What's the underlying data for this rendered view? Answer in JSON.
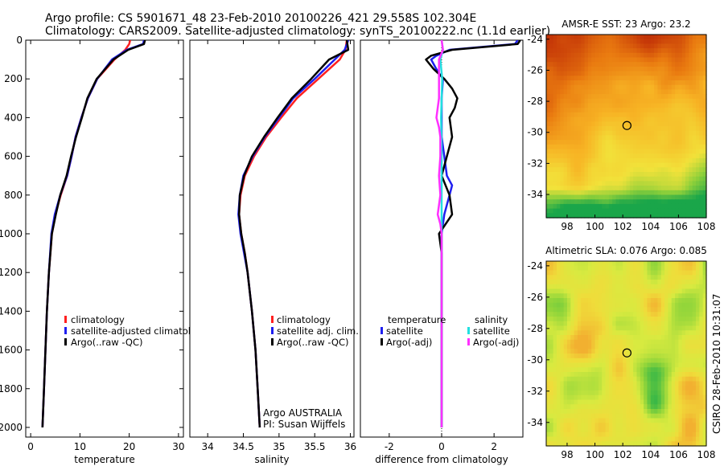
{
  "header": {
    "line1": "Argo profile: CS 5901671_48 23-Feb-2010 20100226_421 29.558S 102.304E",
    "line2": "Climatology: CARS2009. Satellite-adjusted climatology: synTS_20100222.nc (1.1d earlier)"
  },
  "footer": {
    "org_line1": "Argo AUSTRALIA",
    "org_line2": "PI: Susan Wijffels",
    "side_stamp": "CSIRO 28-Feb-2010 10:31:07"
  },
  "colors": {
    "climatology": "#ff2020",
    "satellite": "#1f1ff0",
    "argo": "#000000",
    "sal_satellite": "#22e0e0",
    "sal_argo": "#ff30ff"
  },
  "chart_data": [
    {
      "id": "temperature",
      "type": "line",
      "xlabel": "temperature",
      "ylabel": "",
      "xlim": [
        -1,
        31
      ],
      "ylim": [
        2050,
        0
      ],
      "xticks": [
        0,
        10,
        20,
        30
      ],
      "yticks": [
        0,
        200,
        400,
        600,
        800,
        1000,
        1200,
        1400,
        1600,
        1800,
        2000
      ],
      "legend": [
        "climatology",
        "satellite-adjusted climatolo",
        "Argo(..raw -QC)"
      ],
      "legend_position": "lower-right",
      "series": [
        {
          "name": "climatology",
          "color": "#ff2020",
          "depth": [
            0,
            20,
            50,
            100,
            200,
            300,
            400,
            500,
            600,
            700,
            800,
            900,
            1000,
            1200,
            1400,
            1600,
            1800,
            2000
          ],
          "values": [
            20.2,
            20.0,
            19.2,
            17.0,
            13.5,
            11.6,
            10.3,
            9.1,
            8.3,
            7.4,
            6.1,
            5.0,
            4.3,
            3.7,
            3.3,
            3.0,
            2.7,
            2.4
          ]
        },
        {
          "name": "satellite-adjusted climatology",
          "color": "#1f1ff0",
          "depth": [
            0,
            20,
            50,
            100,
            200,
            300,
            400,
            500,
            600,
            700,
            800,
            900,
            1000,
            1200,
            1400,
            1600,
            1800,
            2000
          ],
          "values": [
            23.0,
            22.8,
            19.5,
            16.5,
            13.5,
            11.6,
            10.3,
            9.1,
            8.3,
            7.4,
            6.0,
            4.9,
            4.2,
            3.7,
            3.3,
            3.0,
            2.7,
            2.4
          ]
        },
        {
          "name": "Argo(..raw -QC)",
          "color": "#000000",
          "depth": [
            0,
            20,
            50,
            100,
            200,
            300,
            400,
            500,
            600,
            700,
            800,
            900,
            1000,
            1200,
            1400,
            1600,
            1800,
            2000
          ],
          "values": [
            23.2,
            23.0,
            19.8,
            16.8,
            13.4,
            11.5,
            10.4,
            9.2,
            8.2,
            7.3,
            6.0,
            5.1,
            4.3,
            3.7,
            3.3,
            3.0,
            2.7,
            2.4
          ]
        }
      ]
    },
    {
      "id": "salinity",
      "type": "line",
      "xlabel": "salinity",
      "ylabel": "",
      "xlim": [
        33.75,
        36.05
      ],
      "ylim": [
        2050,
        0
      ],
      "xticks": [
        34,
        34.5,
        35,
        35.5,
        36
      ],
      "xticklabels": [
        "34",
        "34.5",
        "35",
        "35.5",
        "36"
      ],
      "legend": [
        "climatology",
        "satellite adj. clim.",
        "Argo(..raw -QC)"
      ],
      "legend_position": "lower-right",
      "series": [
        {
          "name": "climatology",
          "color": "#ff2020",
          "depth": [
            0,
            50,
            100,
            200,
            300,
            400,
            500,
            600,
            700,
            800,
            900,
            1000,
            1100,
            1200,
            1400,
            1600,
            1800,
            2000
          ],
          "values": [
            35.95,
            35.93,
            35.85,
            35.55,
            35.25,
            35.03,
            34.82,
            34.65,
            34.52,
            34.46,
            34.44,
            34.47,
            34.52,
            34.56,
            34.62,
            34.67,
            34.7,
            34.73
          ]
        },
        {
          "name": "satellite adj. clim.",
          "color": "#1f1ff0",
          "depth": [
            0,
            50,
            100,
            200,
            300,
            400,
            500,
            600,
            700,
            800,
            900,
            1000,
            1100,
            1200,
            1400,
            1600,
            1800,
            2000
          ],
          "values": [
            35.97,
            35.92,
            35.78,
            35.5,
            35.2,
            35.0,
            34.8,
            34.63,
            34.5,
            34.45,
            34.43,
            34.46,
            34.51,
            34.56,
            34.62,
            34.67,
            34.7,
            34.73
          ]
        },
        {
          "name": "Argo(..raw -QC)",
          "color": "#000000",
          "depth": [
            0,
            50,
            100,
            200,
            300,
            400,
            500,
            600,
            700,
            800,
            900,
            1000,
            1100,
            1200,
            1400,
            1600,
            1800,
            2000
          ],
          "values": [
            35.95,
            35.97,
            35.7,
            35.45,
            35.18,
            34.98,
            34.79,
            34.62,
            34.51,
            34.45,
            34.44,
            34.47,
            34.52,
            34.56,
            34.62,
            34.67,
            34.7,
            34.73
          ]
        }
      ]
    },
    {
      "id": "difference",
      "type": "line",
      "xlabel": "difference from climatology",
      "ylabel": "",
      "xlim": [
        -3.1,
        3.1
      ],
      "ylim": [
        2050,
        0
      ],
      "xticks": [
        -2,
        0,
        2
      ],
      "legend_groups": [
        {
          "title": "temperature",
          "entries": [
            "satellite",
            "Argo(-adj)"
          ]
        },
        {
          "title": "salinity",
          "entries": [
            "satellite",
            "Argo(-adj)"
          ]
        }
      ],
      "legend_position": "lower-center",
      "series": [
        {
          "name": "temperature satellite",
          "color": "#1f1ff0",
          "depth": [
            0,
            20,
            50,
            80,
            100,
            150,
            200,
            300,
            400,
            500,
            600,
            700,
            750,
            800,
            900,
            1000,
            1100,
            1200,
            1400,
            1600,
            1800,
            2000
          ],
          "values": [
            2.9,
            2.8,
            0.3,
            -0.2,
            -0.4,
            -0.2,
            0.05,
            0.0,
            0.0,
            0.0,
            0.1,
            0.2,
            0.4,
            0.3,
            0.1,
            0.0,
            0.0,
            0.0,
            0.0,
            0.0,
            0.0,
            0.0
          ]
        },
        {
          "name": "temperature Argo(-adj)",
          "color": "#000000",
          "depth": [
            0,
            20,
            50,
            80,
            100,
            150,
            200,
            250,
            300,
            350,
            400,
            500,
            600,
            700,
            800,
            900,
            1000,
            1100,
            1200,
            1400,
            1600,
            1800,
            2000
          ],
          "values": [
            3.0,
            2.9,
            0.4,
            -0.4,
            -0.6,
            -0.3,
            0.1,
            0.4,
            0.6,
            0.5,
            0.3,
            0.4,
            0.2,
            0.0,
            0.3,
            0.4,
            -0.1,
            0.0,
            0.0,
            0.0,
            0.0,
            0.0,
            0.0
          ]
        },
        {
          "name": "salinity satellite",
          "color": "#22e0e0",
          "depth": [
            0,
            50,
            100,
            200,
            300,
            400,
            500,
            600,
            700,
            800,
            900,
            1000,
            1200,
            1400,
            1600,
            1800,
            2000
          ],
          "values": [
            0.0,
            0.05,
            -0.05,
            0.02,
            0.0,
            -0.02,
            -0.01,
            0.0,
            0.0,
            0.0,
            0.0,
            0.0,
            0.0,
            0.0,
            0.0,
            0.0,
            0.0
          ]
        },
        {
          "name": "salinity Argo(-adj)",
          "color": "#ff30ff",
          "depth": [
            0,
            50,
            100,
            200,
            300,
            400,
            450,
            500,
            600,
            700,
            800,
            900,
            950,
            1000,
            1200,
            1400,
            1600,
            1800,
            2000
          ],
          "values": [
            0.0,
            0.05,
            -0.1,
            -0.1,
            -0.1,
            -0.2,
            -0.1,
            -0.05,
            -0.05,
            -0.1,
            -0.05,
            -0.15,
            -0.05,
            0.0,
            0.0,
            0.0,
            0.0,
            0.0,
            0.0
          ]
        }
      ]
    },
    {
      "id": "sst_map",
      "type": "heatmap",
      "title": "AMSR-E SST: 23 Argo: 23.2",
      "xlim": [
        96.5,
        108
      ],
      "ylim": [
        -35.5,
        -23.7
      ],
      "xticks": [
        98,
        100,
        102,
        104,
        106,
        108
      ],
      "yticks": [
        -24,
        -26,
        -28,
        -30,
        -32,
        -34
      ],
      "marker": {
        "lon": 102.3,
        "lat": -29.56
      },
      "colors_low_to_high": [
        "#1aa64a",
        "#8fd03a",
        "#f2e23a",
        "#f7b324",
        "#e97a10",
        "#c83c08",
        "#a81004"
      ]
    },
    {
      "id": "sla_map",
      "type": "heatmap",
      "title": "Altimetric SLA: 0.076 Argo: 0.085",
      "xlim": [
        96.5,
        108
      ],
      "ylim": [
        -35.5,
        -23.7
      ],
      "xticks": [
        98,
        100,
        102,
        104,
        106,
        108
      ],
      "yticks": [
        -24,
        -26,
        -28,
        -30,
        -32,
        -34
      ],
      "marker": {
        "lon": 102.3,
        "lat": -29.56
      },
      "colors_low_to_high": [
        "#1e9a7a",
        "#22b04a",
        "#8ed43a",
        "#d8ea40",
        "#f0dc3a",
        "#f2b030"
      ]
    }
  ]
}
